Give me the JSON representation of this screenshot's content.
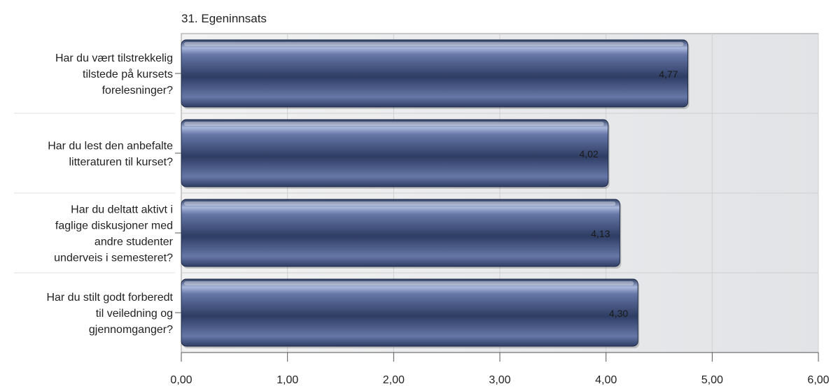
{
  "chart_data": {
    "type": "bar",
    "orientation": "horizontal",
    "title": "31. Egeninnsats",
    "categories": [
      "Har du vært tilstrekkelig tilstede på kursets forelesninger?",
      "Har du lest den anbefalte litteraturen til kurset?",
      "Har du deltatt aktivt i faglige diskusjoner med andre studenter underveis i semesteret?",
      "Har du stilt godt forberedt til veiledning og gjennomganger?"
    ],
    "category_label_lines": [
      [
        "Har du vært tilstrekkelig",
        "tilstede på kursets",
        "forelesninger?"
      ],
      [
        "Har du lest den anbefalte",
        "litteraturen til kurset?"
      ],
      [
        "Har du deltatt aktivt i",
        "faglige diskusjoner med",
        "andre studenter",
        "underveis i semesteret?"
      ],
      [
        "Har du stilt godt forberedt",
        "til veiledning og",
        "gjennomganger?"
      ]
    ],
    "values": [
      4.77,
      4.02,
      4.13,
      4.3
    ],
    "value_labels": [
      "4,77",
      "4,02",
      "4,13",
      "4,30"
    ],
    "xlim": [
      0,
      6
    ],
    "x_ticks": [
      0,
      1,
      2,
      3,
      4,
      5,
      6
    ],
    "x_tick_labels": [
      "0,00",
      "1,00",
      "2,00",
      "3,00",
      "4,00",
      "5,00",
      "6,00"
    ],
    "xlabel": "",
    "ylabel": "",
    "grid": true,
    "legend": "none",
    "colors": {
      "bar_dark": "#2e3d63",
      "bar_mid": "#6677a8",
      "bar_light": "#aab8dc",
      "plot_bg_left": "#f2f2f2",
      "plot_bg_right": "#e1e3e6",
      "grid": "#cfcfcf",
      "axis": "#555555",
      "text": "#222222"
    }
  }
}
